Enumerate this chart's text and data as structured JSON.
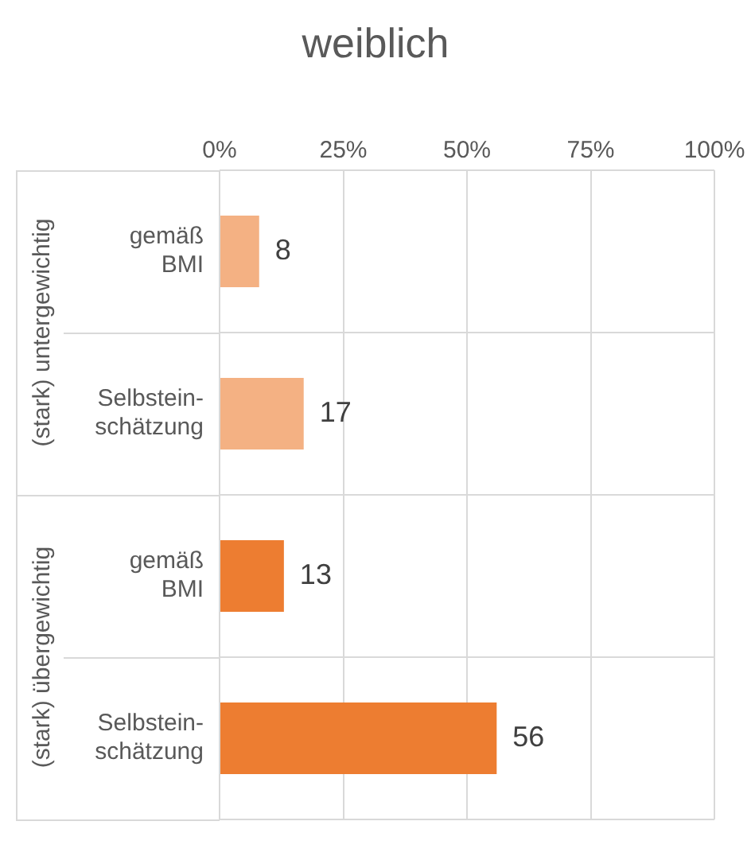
{
  "chart_data": {
    "type": "bar",
    "orientation": "horizontal",
    "title": "weiblich",
    "categories": [
      "gemäß\nBMI",
      "Selbstein-\nschätzung",
      "gemäß\nBMI",
      "Selbstein-\nschätzung"
    ],
    "values": [
      8,
      17,
      13,
      56
    ],
    "colors": [
      "#f4b183",
      "#f4b183",
      "#ed7d31",
      "#ed7d31"
    ],
    "xlim": [
      0,
      100
    ],
    "xticks": [
      {
        "value": 0,
        "label": "0%"
      },
      {
        "value": 25,
        "label": "25%"
      },
      {
        "value": 50,
        "label": "50%"
      },
      {
        "value": 75,
        "label": "75%"
      },
      {
        "value": 100,
        "label": "100%"
      }
    ],
    "annotations": [
      "(stark) untergewichtig",
      "(stark) übergewichtig"
    ],
    "data_labels": true,
    "grid": true
  }
}
